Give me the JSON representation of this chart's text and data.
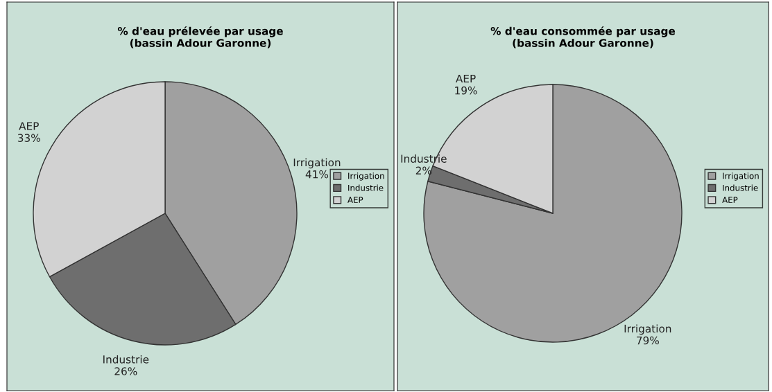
{
  "chart_data": [
    {
      "type": "pie",
      "title": "% d'eau prélevée par usage\n(bassin Adour Garonne)",
      "categories": [
        "Irrigation",
        "Industrie",
        "AEP"
      ],
      "values": [
        41,
        26,
        33
      ],
      "value_labels": [
        "41%",
        "26%",
        "33%"
      ],
      "colors": [
        "#a0a0a0",
        "#6e6e6e",
        "#d2d2d2"
      ],
      "legend": "right"
    },
    {
      "type": "pie",
      "title": "% d'eau consommée par usage\n(bassin Adour Garonne)",
      "categories": [
        "Irrigation",
        "Industrie",
        "AEP"
      ],
      "values": [
        79,
        2,
        19
      ],
      "value_labels": [
        "79%",
        "2%",
        "19%"
      ],
      "colors": [
        "#a0a0a0",
        "#6e6e6e",
        "#d2d2d2"
      ],
      "legend": "right"
    }
  ]
}
